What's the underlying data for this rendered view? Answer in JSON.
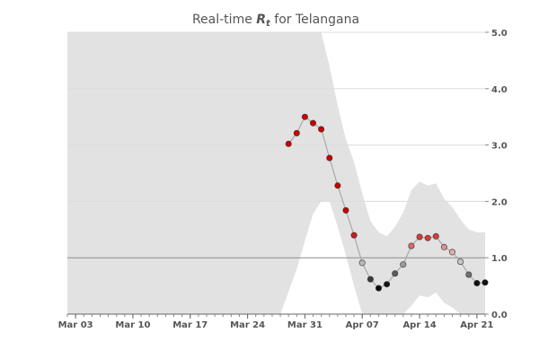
{
  "chart_data": {
    "type": "line",
    "title": {
      "prefix": "Real-time ",
      "symbol": "R",
      "subscript": "t",
      "suffix": " for Telangana"
    },
    "xlabel": "",
    "ylabel": "",
    "x_ticks": [
      "Mar 03",
      "Mar 10",
      "Mar 17",
      "Mar 24",
      "Mar 31",
      "Apr 07",
      "Apr 14",
      "Apr 21"
    ],
    "y_ticks": [
      "0.0",
      "1.0",
      "2.0",
      "3.0",
      "4.0",
      "5.0"
    ],
    "ylim": [
      0,
      5
    ],
    "xlim": [
      "2020-03-02",
      "2020-04-22"
    ],
    "reference_line": 1.0,
    "grid": "horizontal",
    "y_axis_side": "right",
    "series": [
      {
        "type": "line-with-points",
        "x": [
          "2020-03-29",
          "2020-03-30",
          "2020-03-31",
          "2020-04-01",
          "2020-04-02",
          "2020-04-03",
          "2020-04-04",
          "2020-04-05",
          "2020-04-06",
          "2020-04-07",
          "2020-04-08",
          "2020-04-09",
          "2020-04-10",
          "2020-04-11",
          "2020-04-12",
          "2020-04-13",
          "2020-04-14",
          "2020-04-15",
          "2020-04-16",
          "2020-04-17",
          "2020-04-18",
          "2020-04-19",
          "2020-04-20",
          "2020-04-21",
          "2020-04-22"
        ],
        "y": [
          3.02,
          3.21,
          3.5,
          3.39,
          3.28,
          2.77,
          2.28,
          1.84,
          1.4,
          0.91,
          0.62,
          0.46,
          0.53,
          0.72,
          0.88,
          1.21,
          1.37,
          1.35,
          1.38,
          1.19,
          1.1,
          0.93,
          0.7,
          0.55,
          0.56
        ],
        "point_colors": [
          "#cc0000",
          "#cc0000",
          "#cc0000",
          "#cc0000",
          "#cc0000",
          "#cc0000",
          "#cc0000",
          "#cc0000",
          "#d11a1a",
          "#b8b8b8",
          "#3a3a3a",
          "#0a0a0a",
          "#141414",
          "#5a5a5a",
          "#9a9a9a",
          "#dc6a6a",
          "#d93a3a",
          "#d93a3a",
          "#d93a3a",
          "#e08e8e",
          "#e6aaaa",
          "#c8c8c8",
          "#707070",
          "#101010",
          "#101010"
        ]
      },
      {
        "type": "band",
        "x": [
          "2020-03-02",
          "2020-03-28",
          "2020-03-29",
          "2020-03-30",
          "2020-03-31",
          "2020-04-01",
          "2020-04-02",
          "2020-04-03",
          "2020-04-04",
          "2020-04-05",
          "2020-04-06",
          "2020-04-07",
          "2020-04-08",
          "2020-04-09",
          "2020-04-10",
          "2020-04-11",
          "2020-04-12",
          "2020-04-13",
          "2020-04-14",
          "2020-04-15",
          "2020-04-16",
          "2020-04-17",
          "2020-04-18",
          "2020-04-19",
          "2020-04-20",
          "2020-04-21",
          "2020-04-22"
        ],
        "lower": [
          0,
          0,
          0.4,
          0.8,
          1.3,
          1.78,
          2.0,
          2.0,
          1.55,
          1.05,
          0.5,
          0,
          0,
          0,
          0,
          0,
          0,
          0.15,
          0.33,
          0.3,
          0.38,
          0.2,
          0.12,
          0,
          0,
          0,
          0
        ],
        "upper": [
          5,
          5,
          5,
          5,
          5,
          5,
          5,
          4.4,
          3.7,
          3.1,
          2.7,
          2.15,
          1.65,
          1.45,
          1.38,
          1.55,
          1.8,
          2.2,
          2.35,
          2.28,
          2.32,
          2.05,
          1.9,
          1.68,
          1.5,
          1.45,
          1.45
        ],
        "color": "#e2e2e2"
      }
    ],
    "colors": {
      "band": "#e2e2e2",
      "line": "#a8a8a8",
      "reference_line": "#8c8c8c",
      "grid": "#dcdcdc",
      "high": "#cc0000",
      "low": "#000000",
      "neutral": "#ffffff"
    }
  }
}
